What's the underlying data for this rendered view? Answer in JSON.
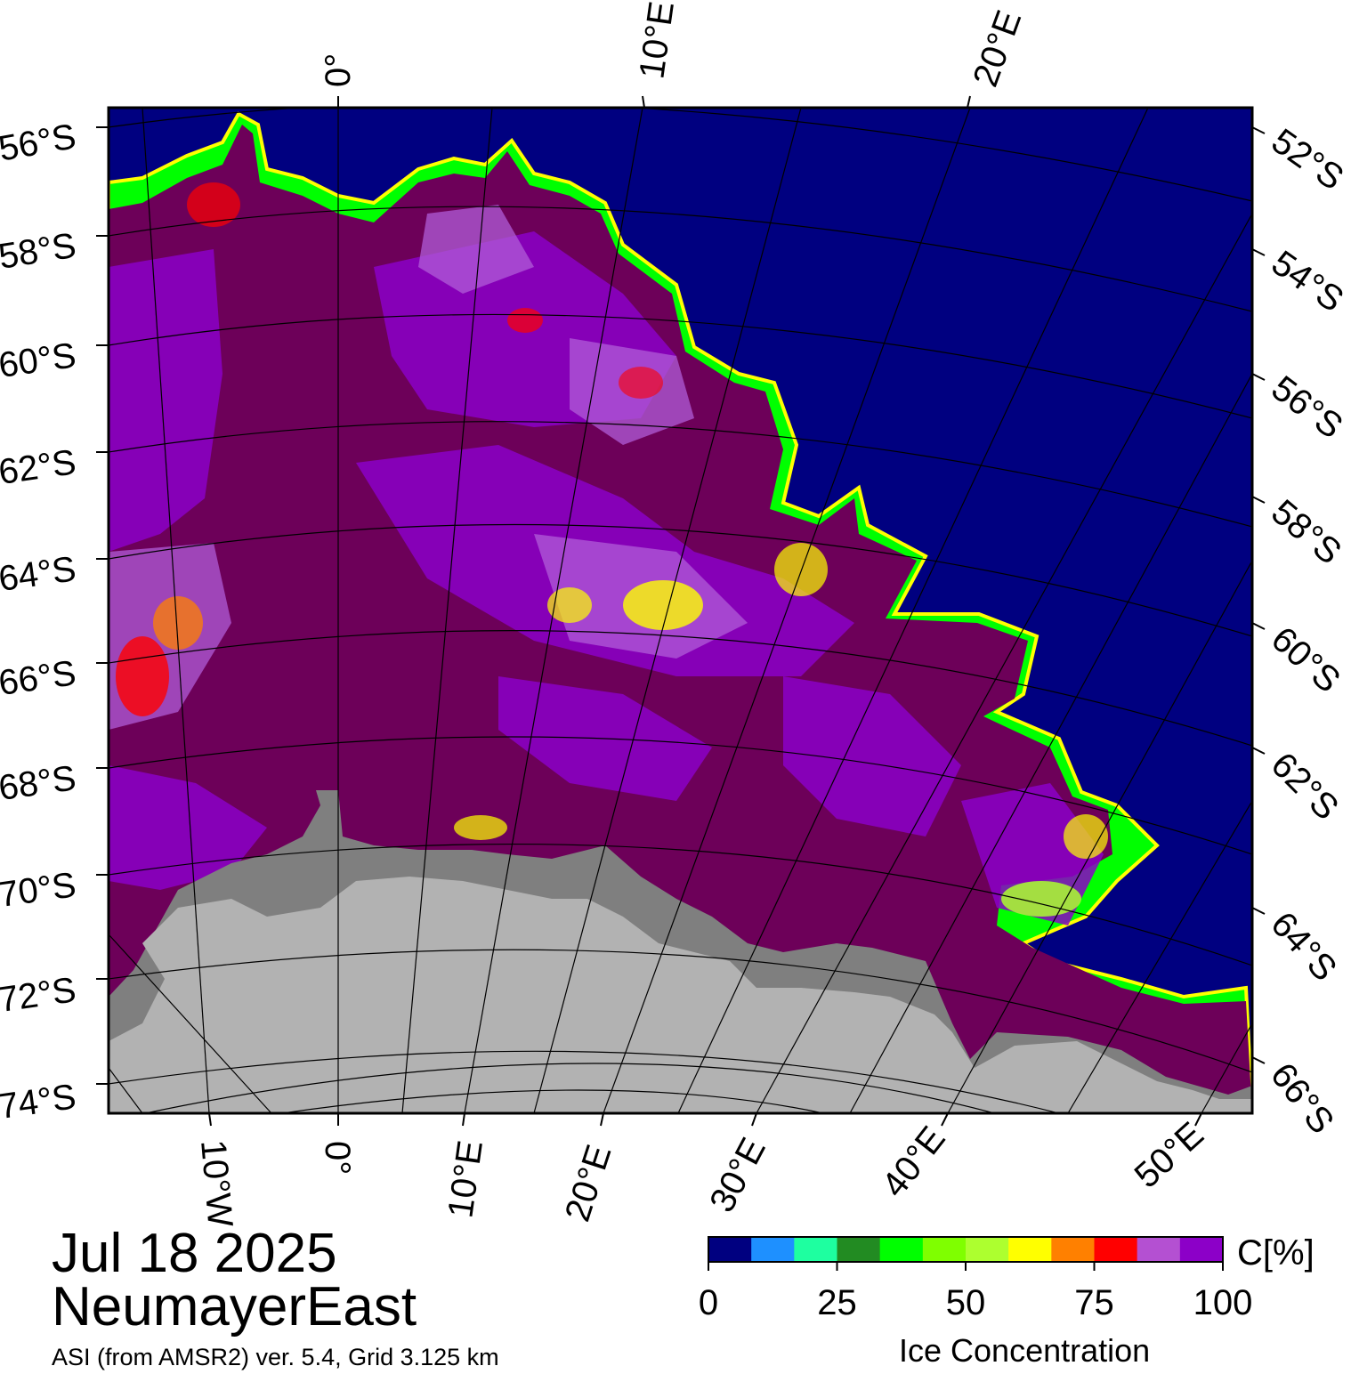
{
  "map": {
    "lat_labels_left": [
      "56°S",
      "58°S",
      "60°S",
      "62°S",
      "64°S",
      "66°S",
      "68°S",
      "70°S",
      "72°S",
      "74°S"
    ],
    "lat_labels_right": [
      "52°S",
      "54°S",
      "56°S",
      "58°S",
      "60°S",
      "62°S",
      "64°S",
      "66°S"
    ],
    "lon_labels_top": [
      "0°",
      "10°E",
      "20°E"
    ],
    "lon_labels_bottom": [
      "10°W",
      "0°",
      "10°E",
      "20°E",
      "30°E",
      "40°E",
      "50°E"
    ],
    "colors": {
      "open_water": "#000080",
      "ice_full": "#6d0059",
      "ice_high": "#8b00c8",
      "ice_mid": "#b05cd8",
      "land_ice": "#b2b2b2",
      "ice_shelf": "#7f7f7f"
    }
  },
  "info": {
    "date": "Jul 18 2025",
    "region": "NeumayerEast",
    "product": "ASI (from AMSR2) ver. 5.4,  Grid 3.125 km"
  },
  "colorbar": {
    "title": "Ice Concentration",
    "unit": "C[%]",
    "ticks": [
      "0",
      "25",
      "50",
      "75",
      "100"
    ],
    "tick_values": [
      0,
      25,
      50,
      75,
      100
    ],
    "range": [
      0,
      100
    ],
    "colors": [
      "#000080",
      "#1e90ff",
      "#1effa0",
      "#228b22",
      "#00ff00",
      "#7fff00",
      "#adff2f",
      "#ffff00",
      "#ff8000",
      "#ff0000",
      "#b450d2",
      "#8c00c8"
    ]
  }
}
